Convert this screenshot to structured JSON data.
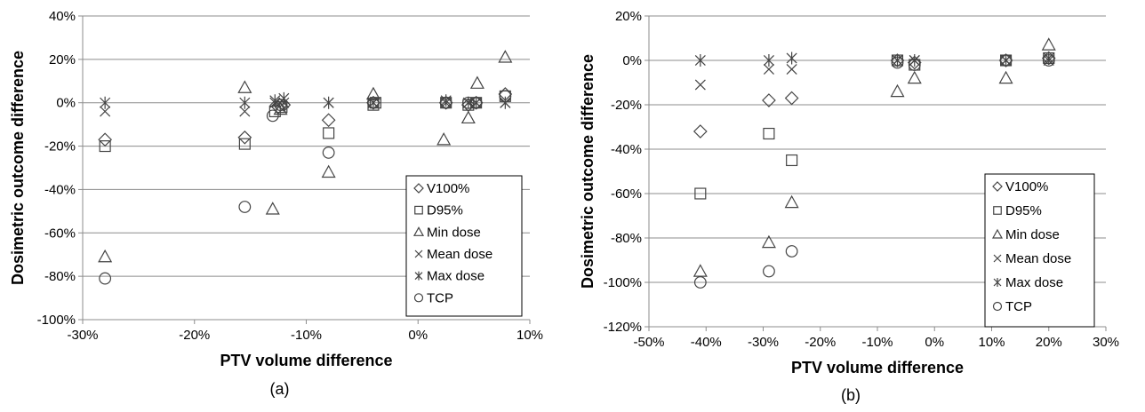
{
  "chart_data": [
    {
      "type": "scatter",
      "panel_label": "(a)",
      "xlabel": "PTV volume difference",
      "ylabel": "Dosimetric outcome difference",
      "xlim": [
        -30,
        10
      ],
      "ylim": [
        -100,
        40
      ],
      "xticks": [
        -30,
        -20,
        -10,
        0,
        10
      ],
      "yticks": [
        -100,
        -80,
        -60,
        -40,
        -20,
        0,
        20,
        40
      ],
      "grid": "horizontal",
      "legend_placement": "lower-right",
      "series": [
        {
          "name": "V100%",
          "marker": "diamond",
          "points": [
            [
              -28,
              -17
            ],
            [
              -15.5,
              -16
            ],
            [
              -12.5,
              -2
            ],
            [
              -12,
              -1
            ],
            [
              -8,
              -8
            ],
            [
              -4,
              0
            ],
            [
              2.5,
              0
            ],
            [
              4.5,
              -1
            ],
            [
              5.2,
              0
            ],
            [
              7.8,
              4
            ]
          ]
        },
        {
          "name": "D95%",
          "marker": "square",
          "points": [
            [
              -28,
              -20
            ],
            [
              -15.5,
              -19
            ],
            [
              -12.8,
              -4
            ],
            [
              -12.2,
              -2
            ],
            [
              -8,
              -14
            ],
            [
              -4,
              -1
            ],
            [
              -3.8,
              0
            ],
            [
              2.5,
              0
            ],
            [
              4.5,
              -1
            ],
            [
              5.2,
              0
            ],
            [
              7.8,
              3
            ]
          ]
        },
        {
          "name": "Min dose",
          "marker": "triangle",
          "points": [
            [
              -28,
              -71
            ],
            [
              -15.5,
              7
            ],
            [
              -13,
              -49
            ],
            [
              -12.3,
              -3
            ],
            [
              -8,
              -32
            ],
            [
              -4,
              4
            ],
            [
              2.3,
              -17
            ],
            [
              4.5,
              -7
            ],
            [
              5.3,
              9
            ],
            [
              7.8,
              21
            ]
          ]
        },
        {
          "name": "Mean dose",
          "marker": "x",
          "points": [
            [
              -28,
              -4
            ],
            [
              -15.5,
              -4
            ],
            [
              -12.8,
              0
            ],
            [
              -12,
              0
            ],
            [
              -8,
              0
            ],
            [
              -4,
              0
            ],
            [
              2.5,
              0
            ],
            [
              4.5,
              0
            ],
            [
              5.2,
              0
            ],
            [
              7.8,
              0
            ]
          ]
        },
        {
          "name": "Max dose",
          "marker": "asterisk",
          "points": [
            [
              -28,
              0
            ],
            [
              -15.5,
              0
            ],
            [
              -12.8,
              1
            ],
            [
              -12,
              2
            ],
            [
              -8,
              0
            ],
            [
              -4,
              0
            ],
            [
              2.5,
              1
            ],
            [
              4.5,
              0
            ],
            [
              5.2,
              0
            ],
            [
              7.8,
              0
            ]
          ]
        },
        {
          "name": "TCP",
          "marker": "circle",
          "points": [
            [
              -28,
              -81
            ],
            [
              -15.5,
              -48
            ],
            [
              -13,
              -6
            ],
            [
              -12.3,
              -1
            ],
            [
              -8,
              -23
            ],
            [
              -4,
              0
            ],
            [
              2.5,
              0
            ],
            [
              4.5,
              0
            ],
            [
              5.2,
              0
            ],
            [
              7.8,
              3
            ]
          ]
        }
      ]
    },
    {
      "type": "scatter",
      "panel_label": "(b)",
      "xlabel": "PTV volume difference",
      "ylabel": "Dosimetric outcome difference",
      "xlim": [
        -50,
        30
      ],
      "ylim": [
        -120,
        20
      ],
      "xticks": [
        -50,
        -40,
        -30,
        -20,
        -10,
        0,
        10,
        20,
        30
      ],
      "yticks": [
        -120,
        -100,
        -80,
        -60,
        -40,
        -20,
        0,
        20
      ],
      "grid": "horizontal",
      "legend_placement": "lower-right",
      "series": [
        {
          "name": "V100%",
          "marker": "diamond",
          "points": [
            [
              -41,
              -32
            ],
            [
              -29,
              -18
            ],
            [
              -25,
              -17
            ],
            [
              -6.5,
              0
            ],
            [
              -3.5,
              -1
            ],
            [
              12.5,
              0
            ],
            [
              20,
              1
            ]
          ]
        },
        {
          "name": "D95%",
          "marker": "square",
          "points": [
            [
              -41,
              -60
            ],
            [
              -29,
              -33
            ],
            [
              -25,
              -45
            ],
            [
              -6.5,
              0
            ],
            [
              -3.5,
              -2
            ],
            [
              12.5,
              0
            ],
            [
              20,
              1
            ]
          ]
        },
        {
          "name": "Min dose",
          "marker": "triangle",
          "points": [
            [
              -41,
              -95
            ],
            [
              -29,
              -82
            ],
            [
              -25,
              -64
            ],
            [
              -6.5,
              -14
            ],
            [
              -3.5,
              -8
            ],
            [
              12.5,
              -8
            ],
            [
              20,
              7
            ]
          ]
        },
        {
          "name": "Mean dose",
          "marker": "x",
          "points": [
            [
              -41,
              -11
            ],
            [
              -29,
              -4
            ],
            [
              -25,
              -4
            ],
            [
              -6.5,
              0
            ],
            [
              -3.5,
              0
            ],
            [
              12.5,
              0
            ],
            [
              20,
              0
            ]
          ]
        },
        {
          "name": "Max dose",
          "marker": "asterisk",
          "points": [
            [
              -41,
              0
            ],
            [
              -29,
              0
            ],
            [
              -25,
              1
            ],
            [
              -6.5,
              0
            ],
            [
              -3.5,
              0
            ],
            [
              12.5,
              0
            ],
            [
              20,
              1
            ]
          ]
        },
        {
          "name": "TCP",
          "marker": "circle",
          "points": [
            [
              -41,
              -100
            ],
            [
              -29,
              -95
            ],
            [
              -25,
              -86
            ],
            [
              -6.5,
              -1
            ],
            [
              -3.5,
              -2
            ],
            [
              12.5,
              0
            ],
            [
              20,
              0
            ]
          ]
        }
      ]
    }
  ]
}
